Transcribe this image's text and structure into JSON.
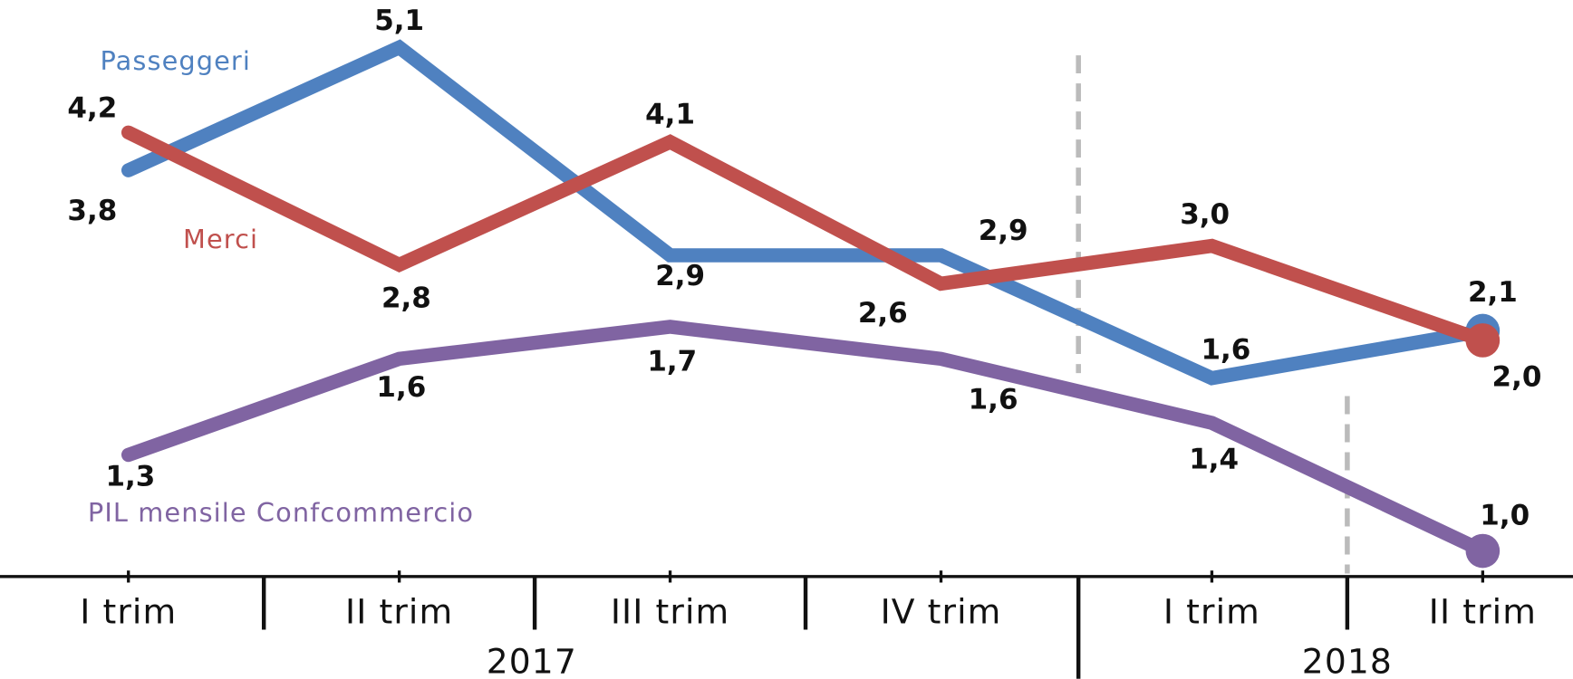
{
  "chart_data": {
    "type": "line",
    "categories": [
      "I trim",
      "II trim",
      "III trim",
      "IV trim",
      "I trim",
      "II trim"
    ],
    "category_groups": [
      "2017",
      "2018"
    ],
    "series": [
      {
        "name": "Passeggeri",
        "color": "#4f81c0",
        "values": [
          3.8,
          5.1,
          2.9,
          2.9,
          1.6,
          2.1
        ],
        "value_labels": [
          "3,8",
          "5,1",
          "2,9",
          "2,9",
          "1,6",
          "2,1"
        ]
      },
      {
        "name": "Merci",
        "color": "#c0504d",
        "values": [
          4.2,
          2.8,
          4.1,
          2.6,
          3.0,
          2.0
        ],
        "value_labels": [
          "4,2",
          "2,8",
          "4,1",
          "2,6",
          "3,0",
          "2,0"
        ]
      },
      {
        "name": "PIL mensile Confcommercio",
        "color": "#8064a2",
        "axis": "y2",
        "values": [
          1.3,
          1.6,
          1.7,
          1.6,
          1.4,
          1.0
        ],
        "value_labels": [
          "1,3",
          "1,6",
          "1,7",
          "1,6",
          "1,4",
          "1,0"
        ]
      }
    ],
    "ylim": [
      -0.5,
      5.6
    ],
    "y2lim": [
      0.92,
      2.72
    ],
    "grid": false
  }
}
